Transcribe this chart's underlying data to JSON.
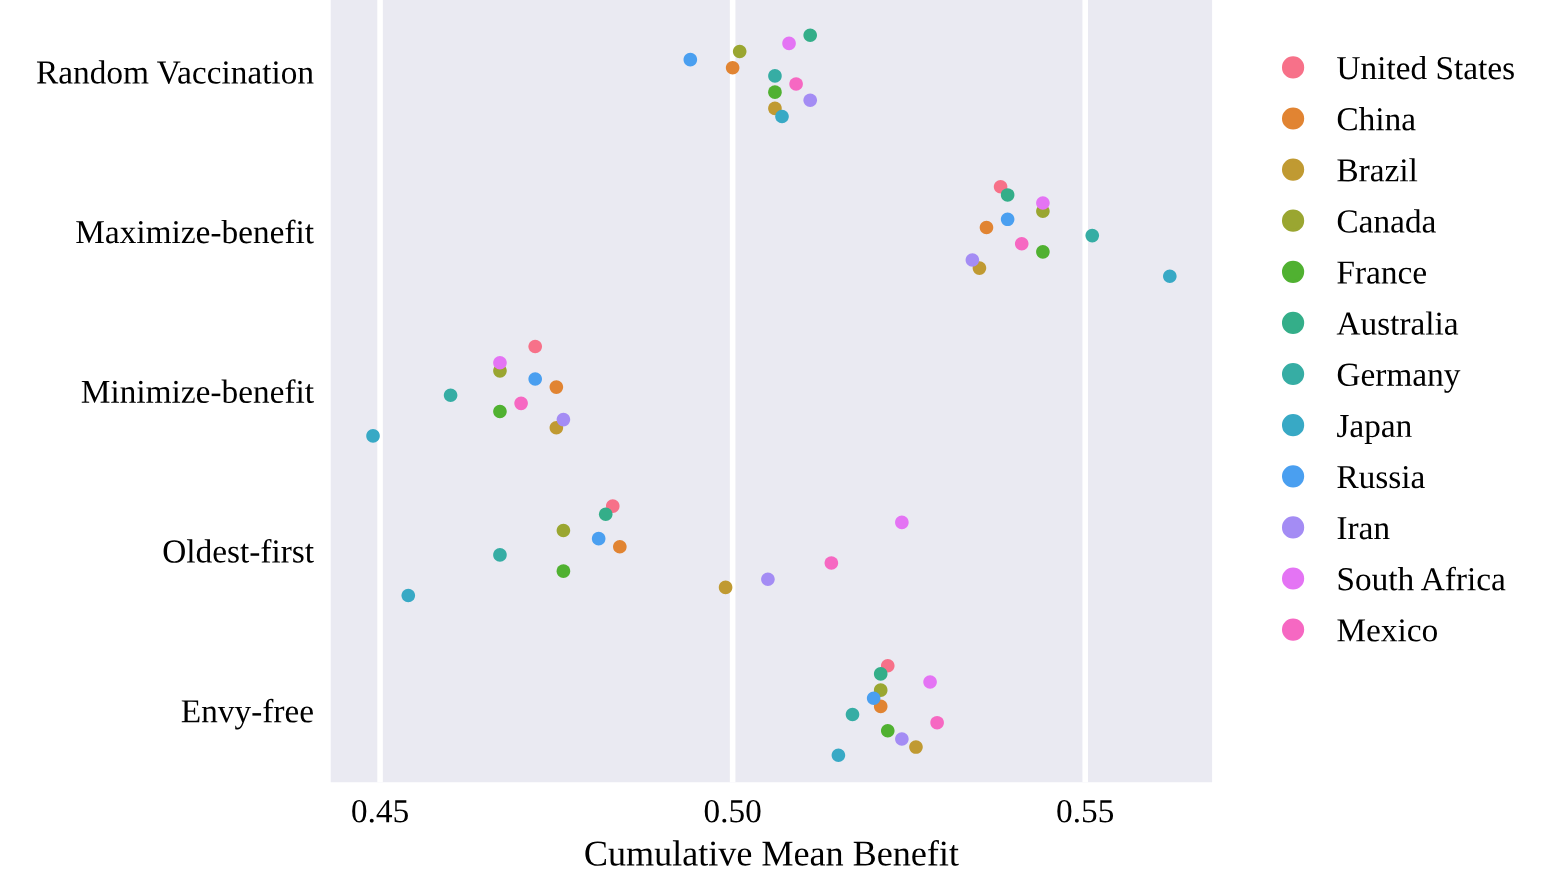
{
  "chart_data": {
    "type": "scatter",
    "orientation": "horizontal",
    "xlabel": "Cumulative Mean Benefit",
    "categories": [
      "Random Vaccination",
      "Maximize-benefit",
      "Minimize-benefit",
      "Oldest-first",
      "Envy-free"
    ],
    "xlim": [
      0.443,
      0.568
    ],
    "xticks": [
      0.45,
      {
        "value": 0.5,
        "label": "0.50"
      },
      0.55
    ],
    "grid": "x",
    "legend": "right",
    "marker": "circle",
    "series": [
      {
        "name": "United States",
        "color": "#f77189",
        "values": [
          null,
          0.538,
          0.472,
          0.483,
          0.522
        ]
      },
      {
        "name": "China",
        "color": "#e18432",
        "values": [
          0.5,
          0.536,
          0.475,
          0.484,
          0.521
        ]
      },
      {
        "name": "Brazil",
        "color": "#c09a32",
        "values": [
          0.506,
          0.535,
          0.475,
          0.499,
          0.526
        ]
      },
      {
        "name": "Canada",
        "color": "#9aa631",
        "values": [
          0.501,
          0.544,
          0.467,
          0.476,
          0.521
        ]
      },
      {
        "name": "France",
        "color": "#50b131",
        "values": [
          0.506,
          0.544,
          0.467,
          0.476,
          0.522
        ]
      },
      {
        "name": "Australia",
        "color": "#34ae89",
        "values": [
          0.511,
          0.539,
          null,
          0.482,
          0.521
        ]
      },
      {
        "name": "Germany",
        "color": "#36ada4",
        "values": [
          0.506,
          0.551,
          0.46,
          0.467,
          0.517
        ]
      },
      {
        "name": "Japan",
        "color": "#38a9c5",
        "values": [
          0.507,
          0.562,
          0.449,
          0.454,
          0.515
        ]
      },
      {
        "name": "Russia",
        "color": "#4a9ff0",
        "values": [
          0.494,
          0.539,
          0.472,
          0.481,
          0.52
        ]
      },
      {
        "name": "Iran",
        "color": "#a48cf4",
        "values": [
          0.511,
          0.534,
          0.476,
          0.505,
          0.524
        ]
      },
      {
        "name": "South Africa",
        "color": "#e474f4",
        "values": [
          0.508,
          0.544,
          0.467,
          0.524,
          0.528
        ]
      },
      {
        "name": "Mexico",
        "color": "#f668c2",
        "values": [
          0.509,
          0.541,
          0.47,
          0.514,
          0.529
        ]
      }
    ]
  }
}
